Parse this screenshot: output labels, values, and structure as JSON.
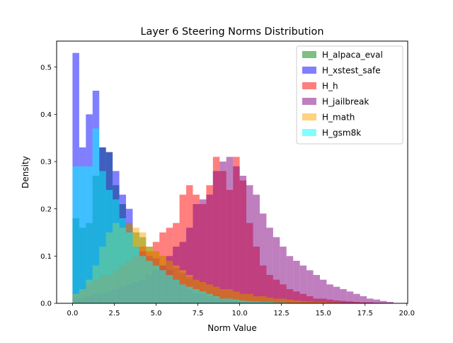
{
  "chart_data": {
    "type": "histogram",
    "title": "Layer 6 Steering Norms Distribution",
    "xlabel": "Norm Value",
    "ylabel": "Density",
    "xlim": [
      -0.95,
      20.05
    ],
    "ylim": [
      0,
      0.555
    ],
    "xticks": [
      0,
      2.5,
      5,
      7.5,
      10,
      12.5,
      15,
      17.5,
      20
    ],
    "xtick_labels": [
      "0.0",
      "2.5",
      "5.0",
      "7.5",
      "10.0",
      "12.5",
      "15.0",
      "17.5",
      "20.0"
    ],
    "yticks": [
      0,
      0.1,
      0.2,
      0.3,
      0.4,
      0.5
    ],
    "ytick_labels": [
      "0.0",
      "0.1",
      "0.2",
      "0.3",
      "0.4",
      "0.5"
    ],
    "legend_position": "top-right",
    "bar_alpha": 0.5,
    "series": [
      {
        "name": "H_alpaca_eval",
        "color": "#008000",
        "bin_start": 0,
        "bin_width": 0.4,
        "values": [
          0.18,
          0.16,
          0.17,
          0.27,
          0.33,
          0.32,
          0.25,
          0.21,
          0.17,
          0.15,
          0.14,
          0.12,
          0.11,
          0.1,
          0.09,
          0.075,
          0.065,
          0.055,
          0.05,
          0.045,
          0.04,
          0.035,
          0.03,
          0.03,
          0.025,
          0.02,
          0.02,
          0.015,
          0.015,
          0.012,
          0.01,
          0.01,
          0.008,
          0.006,
          0.005,
          0.004,
          0.003,
          0.003,
          0.002,
          0.002,
          0.001,
          0.001,
          0.001,
          0.001,
          0.001,
          0.0,
          0.0,
          0.0
        ]
      },
      {
        "name": "H_xstest_safe",
        "color": "#0000ff",
        "bin_start": 0,
        "bin_width": 0.4,
        "values": [
          0.53,
          0.33,
          0.4,
          0.45,
          0.33,
          0.32,
          0.28,
          0.23,
          0.2,
          0.12,
          0.11,
          0.1,
          0.095,
          0.08,
          0.07,
          0.05,
          0.04,
          0.03,
          0.02,
          0.02,
          0.015,
          0.01,
          0.01,
          0.01,
          0.005,
          0.005,
          0.005,
          0.003,
          0.003,
          0.002,
          0.002,
          0.001,
          0.0,
          0.0,
          0.0,
          0.0,
          0.0,
          0.0,
          0.0,
          0.0,
          0.0,
          0.0,
          0.0,
          0.0,
          0.0,
          0.0,
          0.0,
          0.0
        ]
      },
      {
        "name": "H_h",
        "color": "#ff0000",
        "bin_start": 0,
        "bin_width": 0.4,
        "values": [
          0.02,
          0.03,
          0.04,
          0.05,
          0.06,
          0.06,
          0.07,
          0.08,
          0.09,
          0.1,
          0.12,
          0.11,
          0.13,
          0.15,
          0.16,
          0.17,
          0.23,
          0.25,
          0.23,
          0.21,
          0.25,
          0.31,
          0.28,
          0.24,
          0.31,
          0.26,
          0.17,
          0.12,
          0.08,
          0.06,
          0.05,
          0.04,
          0.03,
          0.025,
          0.02,
          0.015,
          0.01,
          0.01,
          0.008,
          0.006,
          0.005,
          0.004,
          0.003,
          0.002,
          0.002,
          0.001,
          0.001,
          0.0
        ]
      },
      {
        "name": "H_jailbreak",
        "color": "#800080",
        "bin_start": 0,
        "bin_width": 0.4,
        "values": [
          0.01,
          0.01,
          0.015,
          0.02,
          0.02,
          0.025,
          0.03,
          0.035,
          0.04,
          0.045,
          0.05,
          0.06,
          0.07,
          0.08,
          0.1,
          0.12,
          0.13,
          0.16,
          0.21,
          0.22,
          0.23,
          0.28,
          0.3,
          0.31,
          0.29,
          0.27,
          0.25,
          0.23,
          0.19,
          0.16,
          0.14,
          0.12,
          0.1,
          0.09,
          0.08,
          0.07,
          0.06,
          0.05,
          0.04,
          0.035,
          0.03,
          0.025,
          0.02,
          0.015,
          0.01,
          0.008,
          0.005,
          0.003
        ]
      },
      {
        "name": "H_math",
        "color": "#ffa500",
        "bin_start": 0,
        "bin_width": 0.4,
        "values": [
          0.02,
          0.03,
          0.05,
          0.08,
          0.12,
          0.15,
          0.17,
          0.16,
          0.17,
          0.16,
          0.15,
          0.12,
          0.11,
          0.1,
          0.09,
          0.08,
          0.07,
          0.06,
          0.05,
          0.045,
          0.04,
          0.035,
          0.03,
          0.03,
          0.025,
          0.02,
          0.02,
          0.015,
          0.015,
          0.012,
          0.01,
          0.01,
          0.008,
          0.006,
          0.005,
          0.004,
          0.003,
          0.003,
          0.002,
          0.002,
          0.001,
          0.001,
          0.001,
          0.001,
          0.001,
          0.0,
          0.0,
          0.0
        ]
      },
      {
        "name": "H_gsm8k",
        "color": "#00ffff",
        "bin_start": 0,
        "bin_width": 0.4,
        "values": [
          0.29,
          0.29,
          0.29,
          0.37,
          0.28,
          0.24,
          0.22,
          0.18,
          0.15,
          0.12,
          0.1,
          0.09,
          0.08,
          0.07,
          0.06,
          0.05,
          0.04,
          0.035,
          0.03,
          0.025,
          0.02,
          0.015,
          0.01,
          0.01,
          0.008,
          0.006,
          0.005,
          0.004,
          0.003,
          0.003,
          0.002,
          0.002,
          0.001,
          0.001,
          0.0,
          0.0,
          0.0,
          0.0,
          0.0,
          0.0,
          0.0,
          0.0,
          0.0,
          0.0,
          0.0,
          0.0,
          0.0,
          0.0
        ]
      }
    ]
  }
}
